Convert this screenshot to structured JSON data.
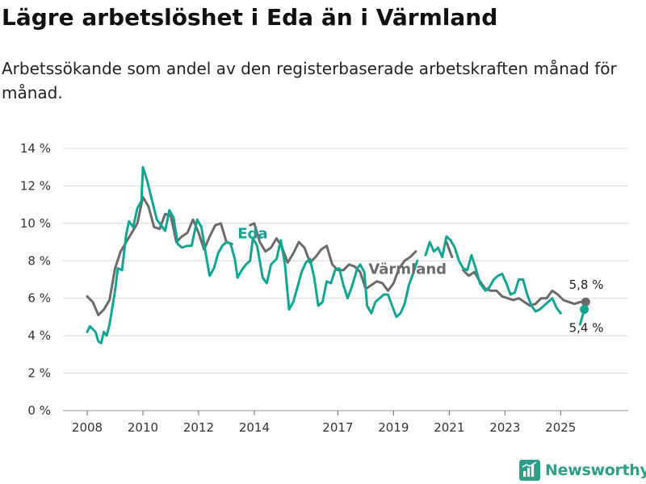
{
  "title": "Lägre arbetslöshet i Eda än i Värmland",
  "subtitle": "Arbetssökande som andel av den registerbaserade arbetskraften månad för månad.",
  "brand": "Newsworthy",
  "colors": {
    "eda": "#12a594",
    "varmland": "#6b6b6b",
    "grid": "#d8d8d8",
    "axis": "#444444",
    "brand": "#2f9e89"
  },
  "chart_data": {
    "type": "line",
    "title": "Lägre arbetslöshet i Eda än i Värmland",
    "xlabel": "",
    "ylabel": "",
    "xlim": [
      2008.0,
      2026.5
    ],
    "ylim": [
      0,
      14
    ],
    "grid": true,
    "y_ticks": [
      {
        "value": 0,
        "label": "0 %"
      },
      {
        "value": 2,
        "label": "2 %"
      },
      {
        "value": 4,
        "label": "4 %"
      },
      {
        "value": 6,
        "label": "6 %"
      },
      {
        "value": 8,
        "label": "8 %"
      },
      {
        "value": 10,
        "label": "10 %"
      },
      {
        "value": 12,
        "label": "12 %"
      },
      {
        "value": 14,
        "label": "14 %"
      }
    ],
    "x_ticks": [
      {
        "value": 2008,
        "label": "2008"
      },
      {
        "value": 2010,
        "label": "2010"
      },
      {
        "value": 2012,
        "label": "2012"
      },
      {
        "value": 2014,
        "label": "2014"
      },
      {
        "value": 2017,
        "label": "2017"
      },
      {
        "value": 2019,
        "label": "2019"
      },
      {
        "value": 2021,
        "label": "2021"
      },
      {
        "value": 2023,
        "label": "2023"
      },
      {
        "value": 2025,
        "label": "2025"
      }
    ],
    "series": [
      {
        "name": "Värmland",
        "label": "Värmland",
        "color": "#6b6b6b",
        "end_label": "5,8 %",
        "points": [
          [
            2008.0,
            6.1
          ],
          [
            2008.2,
            5.8
          ],
          [
            2008.4,
            5.1
          ],
          [
            2008.6,
            5.4
          ],
          [
            2008.8,
            5.9
          ],
          [
            2009.0,
            7.6
          ],
          [
            2009.2,
            8.5
          ],
          [
            2009.4,
            9.0
          ],
          [
            2009.6,
            9.5
          ],
          [
            2009.8,
            10.0
          ],
          [
            2010.0,
            11.4
          ],
          [
            2010.2,
            10.9
          ],
          [
            2010.4,
            9.8
          ],
          [
            2010.6,
            9.7
          ],
          [
            2010.8,
            10.5
          ],
          [
            2011.0,
            10.4
          ],
          [
            2011.2,
            9.0
          ],
          [
            2011.4,
            9.3
          ],
          [
            2011.6,
            9.5
          ],
          [
            2011.8,
            10.2
          ],
          [
            2012.0,
            9.5
          ],
          [
            2012.2,
            8.6
          ],
          [
            2012.4,
            9.3
          ],
          [
            2012.6,
            9.9
          ],
          [
            2012.8,
            10.0
          ],
          [
            2013.0,
            9.0
          ],
          [
            2013.2,
            8.9
          ],
          null,
          [
            2013.85,
            9.9
          ],
          [
            2014.0,
            10.0
          ],
          [
            2014.2,
            9.0
          ],
          [
            2014.4,
            8.5
          ],
          [
            2014.6,
            8.7
          ],
          [
            2014.8,
            9.2
          ],
          [
            2015.0,
            8.7
          ],
          [
            2015.2,
            7.9
          ],
          [
            2015.4,
            8.4
          ],
          [
            2015.6,
            9.0
          ],
          [
            2015.8,
            8.7
          ],
          [
            2016.0,
            7.9
          ],
          [
            2016.2,
            8.2
          ],
          [
            2016.4,
            8.6
          ],
          [
            2016.6,
            8.8
          ],
          [
            2016.8,
            7.8
          ],
          [
            2017.0,
            7.5
          ],
          [
            2017.2,
            7.5
          ],
          [
            2017.4,
            7.8
          ],
          [
            2017.6,
            7.7
          ],
          [
            2017.8,
            7.4
          ],
          [
            2018.0,
            6.5
          ],
          [
            2018.2,
            6.7
          ],
          [
            2018.4,
            6.9
          ],
          [
            2018.6,
            6.8
          ],
          [
            2018.8,
            6.4
          ],
          [
            2019.0,
            6.8
          ],
          [
            2019.2,
            7.6
          ],
          [
            2019.4,
            8.0
          ],
          [
            2019.6,
            8.2
          ],
          [
            2019.8,
            8.5
          ],
          null,
          [
            2020.9,
            9.0
          ],
          [
            2021.1,
            8.2
          ],
          null,
          [
            2021.5,
            7.5
          ],
          [
            2021.7,
            7.2
          ],
          [
            2021.9,
            7.4
          ],
          [
            2022.1,
            6.9
          ],
          [
            2022.3,
            6.5
          ],
          [
            2022.5,
            6.4
          ],
          [
            2022.7,
            6.4
          ],
          [
            2022.9,
            6.1
          ],
          [
            2023.1,
            6.0
          ],
          [
            2023.3,
            5.9
          ],
          [
            2023.5,
            6.0
          ],
          [
            2023.7,
            5.8
          ],
          [
            2023.9,
            5.6
          ],
          [
            2024.1,
            5.7
          ],
          [
            2024.3,
            6.0
          ],
          [
            2024.5,
            6.0
          ],
          [
            2024.7,
            6.4
          ],
          [
            2024.9,
            6.2
          ],
          [
            2025.1,
            5.9
          ],
          [
            2025.3,
            5.8
          ],
          [
            2025.5,
            5.7
          ],
          [
            2025.7,
            5.8
          ],
          [
            2025.9,
            5.8
          ]
        ]
      },
      {
        "name": "Eda",
        "label": "Eda",
        "color": "#12a594",
        "end_label": "5,4 %",
        "points": [
          [
            2008.0,
            4.2
          ],
          [
            2008.1,
            4.5
          ],
          [
            2008.3,
            4.2
          ],
          [
            2008.4,
            3.7
          ],
          [
            2008.5,
            3.6
          ],
          [
            2008.6,
            4.2
          ],
          [
            2008.7,
            4.0
          ],
          [
            2008.8,
            4.6
          ],
          [
            2009.0,
            6.4
          ],
          [
            2009.1,
            7.6
          ],
          [
            2009.25,
            7.5
          ],
          [
            2009.4,
            9.4
          ],
          [
            2009.5,
            10.1
          ],
          [
            2009.65,
            9.8
          ],
          [
            2009.8,
            10.8
          ],
          [
            2009.95,
            11.2
          ],
          [
            2010.0,
            13.0
          ],
          [
            2010.15,
            12.3
          ],
          [
            2010.3,
            11.4
          ],
          [
            2010.5,
            10.2
          ],
          [
            2010.65,
            9.9
          ],
          [
            2010.8,
            9.6
          ],
          [
            2010.95,
            10.7
          ],
          [
            2011.1,
            10.3
          ],
          [
            2011.25,
            8.9
          ],
          [
            2011.4,
            8.7
          ],
          [
            2011.6,
            8.8
          ],
          [
            2011.75,
            8.8
          ],
          [
            2011.95,
            10.2
          ],
          [
            2012.1,
            9.8
          ],
          [
            2012.3,
            8.0
          ],
          [
            2012.4,
            7.2
          ],
          [
            2012.55,
            7.6
          ],
          [
            2012.7,
            8.4
          ],
          [
            2012.85,
            8.8
          ],
          [
            2013.0,
            9.0
          ],
          [
            2013.15,
            8.9
          ],
          [
            2013.3,
            8.1
          ],
          [
            2013.4,
            7.1
          ],
          [
            2013.55,
            7.5
          ],
          [
            2013.7,
            7.8
          ],
          [
            2013.85,
            8.0
          ],
          [
            2013.95,
            9.2
          ],
          [
            2014.1,
            8.8
          ],
          [
            2014.3,
            7.1
          ],
          [
            2014.45,
            6.8
          ],
          [
            2014.6,
            7.8
          ],
          [
            2014.8,
            8.1
          ],
          [
            2014.95,
            9.1
          ],
          [
            2015.1,
            7.8
          ],
          [
            2015.25,
            5.4
          ],
          [
            2015.4,
            5.8
          ],
          [
            2015.55,
            6.6
          ],
          [
            2015.7,
            7.4
          ],
          [
            2015.85,
            7.9
          ],
          [
            2016.0,
            8.1
          ],
          [
            2016.15,
            7.1
          ],
          [
            2016.3,
            5.6
          ],
          [
            2016.45,
            5.8
          ],
          [
            2016.6,
            6.9
          ],
          [
            2016.75,
            6.8
          ],
          [
            2016.9,
            7.5
          ],
          [
            2017.05,
            7.6
          ],
          [
            2017.2,
            6.7
          ],
          [
            2017.35,
            6.0
          ],
          [
            2017.5,
            6.6
          ],
          [
            2017.7,
            7.6
          ],
          [
            2017.8,
            7.8
          ],
          [
            2017.95,
            7.4
          ],
          [
            2018.05,
            5.6
          ],
          [
            2018.2,
            5.2
          ],
          [
            2018.35,
            5.8
          ],
          [
            2018.5,
            6.0
          ],
          [
            2018.65,
            6.2
          ],
          [
            2018.8,
            6.2
          ],
          [
            2018.95,
            5.6
          ],
          [
            2019.1,
            5.0
          ],
          [
            2019.25,
            5.2
          ],
          [
            2019.4,
            5.7
          ],
          [
            2019.55,
            6.7
          ],
          [
            2019.7,
            7.3
          ],
          [
            2019.85,
            8.0
          ],
          null,
          [
            2020.15,
            8.3
          ],
          [
            2020.3,
            9.0
          ],
          [
            2020.45,
            8.5
          ],
          [
            2020.6,
            8.7
          ],
          [
            2020.75,
            8.2
          ],
          [
            2020.9,
            9.3
          ],
          [
            2021.05,
            9.1
          ],
          [
            2021.2,
            8.7
          ],
          [
            2021.35,
            8.0
          ],
          [
            2021.5,
            7.6
          ],
          [
            2021.65,
            7.5
          ],
          [
            2021.8,
            8.3
          ],
          [
            2021.95,
            7.6
          ],
          [
            2022.1,
            6.8
          ],
          [
            2022.3,
            6.4
          ],
          [
            2022.45,
            6.6
          ],
          [
            2022.6,
            7.0
          ],
          [
            2022.75,
            7.2
          ],
          [
            2022.9,
            7.3
          ],
          [
            2023.05,
            6.8
          ],
          [
            2023.2,
            6.2
          ],
          [
            2023.35,
            6.3
          ],
          [
            2023.5,
            7.0
          ],
          [
            2023.65,
            7.0
          ],
          [
            2023.8,
            6.2
          ],
          [
            2023.95,
            5.6
          ],
          [
            2024.1,
            5.3
          ],
          [
            2024.25,
            5.4
          ],
          [
            2024.4,
            5.6
          ],
          [
            2024.55,
            5.8
          ],
          [
            2024.7,
            6.0
          ],
          [
            2024.85,
            5.5
          ],
          [
            2025.0,
            5.2
          ],
          null,
          [
            2025.7,
            4.6
          ],
          [
            2025.85,
            5.4
          ]
        ]
      }
    ]
  }
}
